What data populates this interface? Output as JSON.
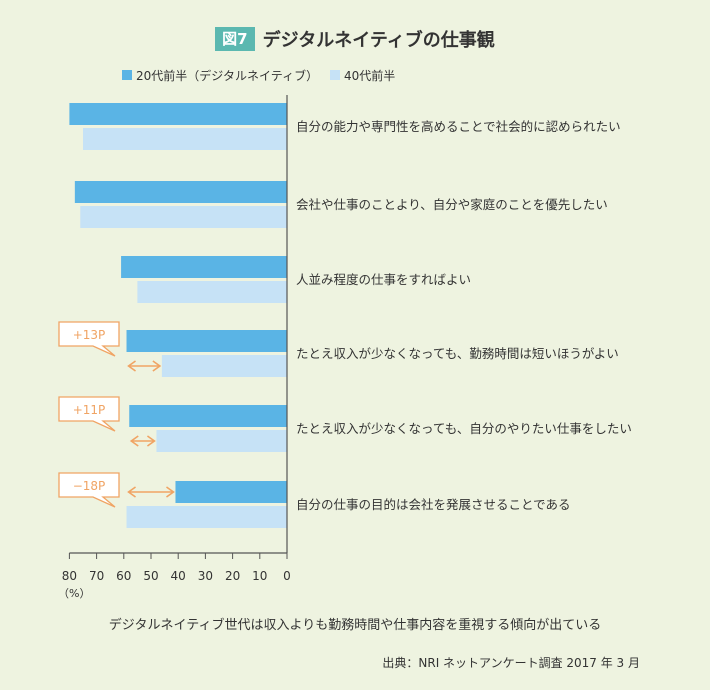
{
  "figure": {
    "badge": "図7",
    "title": "デジタルネイティブの仕事観"
  },
  "chart_data": {
    "type": "bar",
    "orientation": "horizontal-leftward",
    "series": [
      {
        "name": "20代前半（デジタルネイティブ）",
        "color": "#5ab4e5",
        "values": [
          80,
          78,
          61,
          59,
          58,
          41
        ]
      },
      {
        "name": "40代前半",
        "color": "#c6e2f6",
        "values": [
          75,
          76,
          55,
          46,
          48,
          59
        ]
      }
    ],
    "categories": [
      "自分の能力や専門性を高めることで社会的に認められたい",
      "会社や仕事のことより、自分や家庭のことを優先したい",
      "人並み程度の仕事をすればよい",
      "たとえ収入が少なくなっても、勤務時間は短いほうがよい",
      "たとえ収入が少なくなっても、自分のやりたい仕事をしたい",
      "自分の仕事の目的は会社を発展させることである"
    ],
    "annotations": [
      {
        "category_index": 3,
        "label": "+13P"
      },
      {
        "category_index": 4,
        "label": "+11P"
      },
      {
        "category_index": 5,
        "label": "−18P"
      }
    ],
    "xlim": [
      0,
      80
    ],
    "ticks": [
      "80",
      "70",
      "60",
      "50",
      "40",
      "30",
      "20",
      "10",
      "0"
    ],
    "unit_label": "（%）",
    "legend_position": "top-left",
    "grid": false
  },
  "footnote": "デジタルネイティブ世代は収入よりも勤務時間や仕事内容を重視する傾向が出ている",
  "source": "出典：NRI ネットアンケート調査 2017 年 3 月",
  "colors": {
    "background": "#eef3e0",
    "annotation": "#f0a464",
    "axis": "#555555"
  }
}
